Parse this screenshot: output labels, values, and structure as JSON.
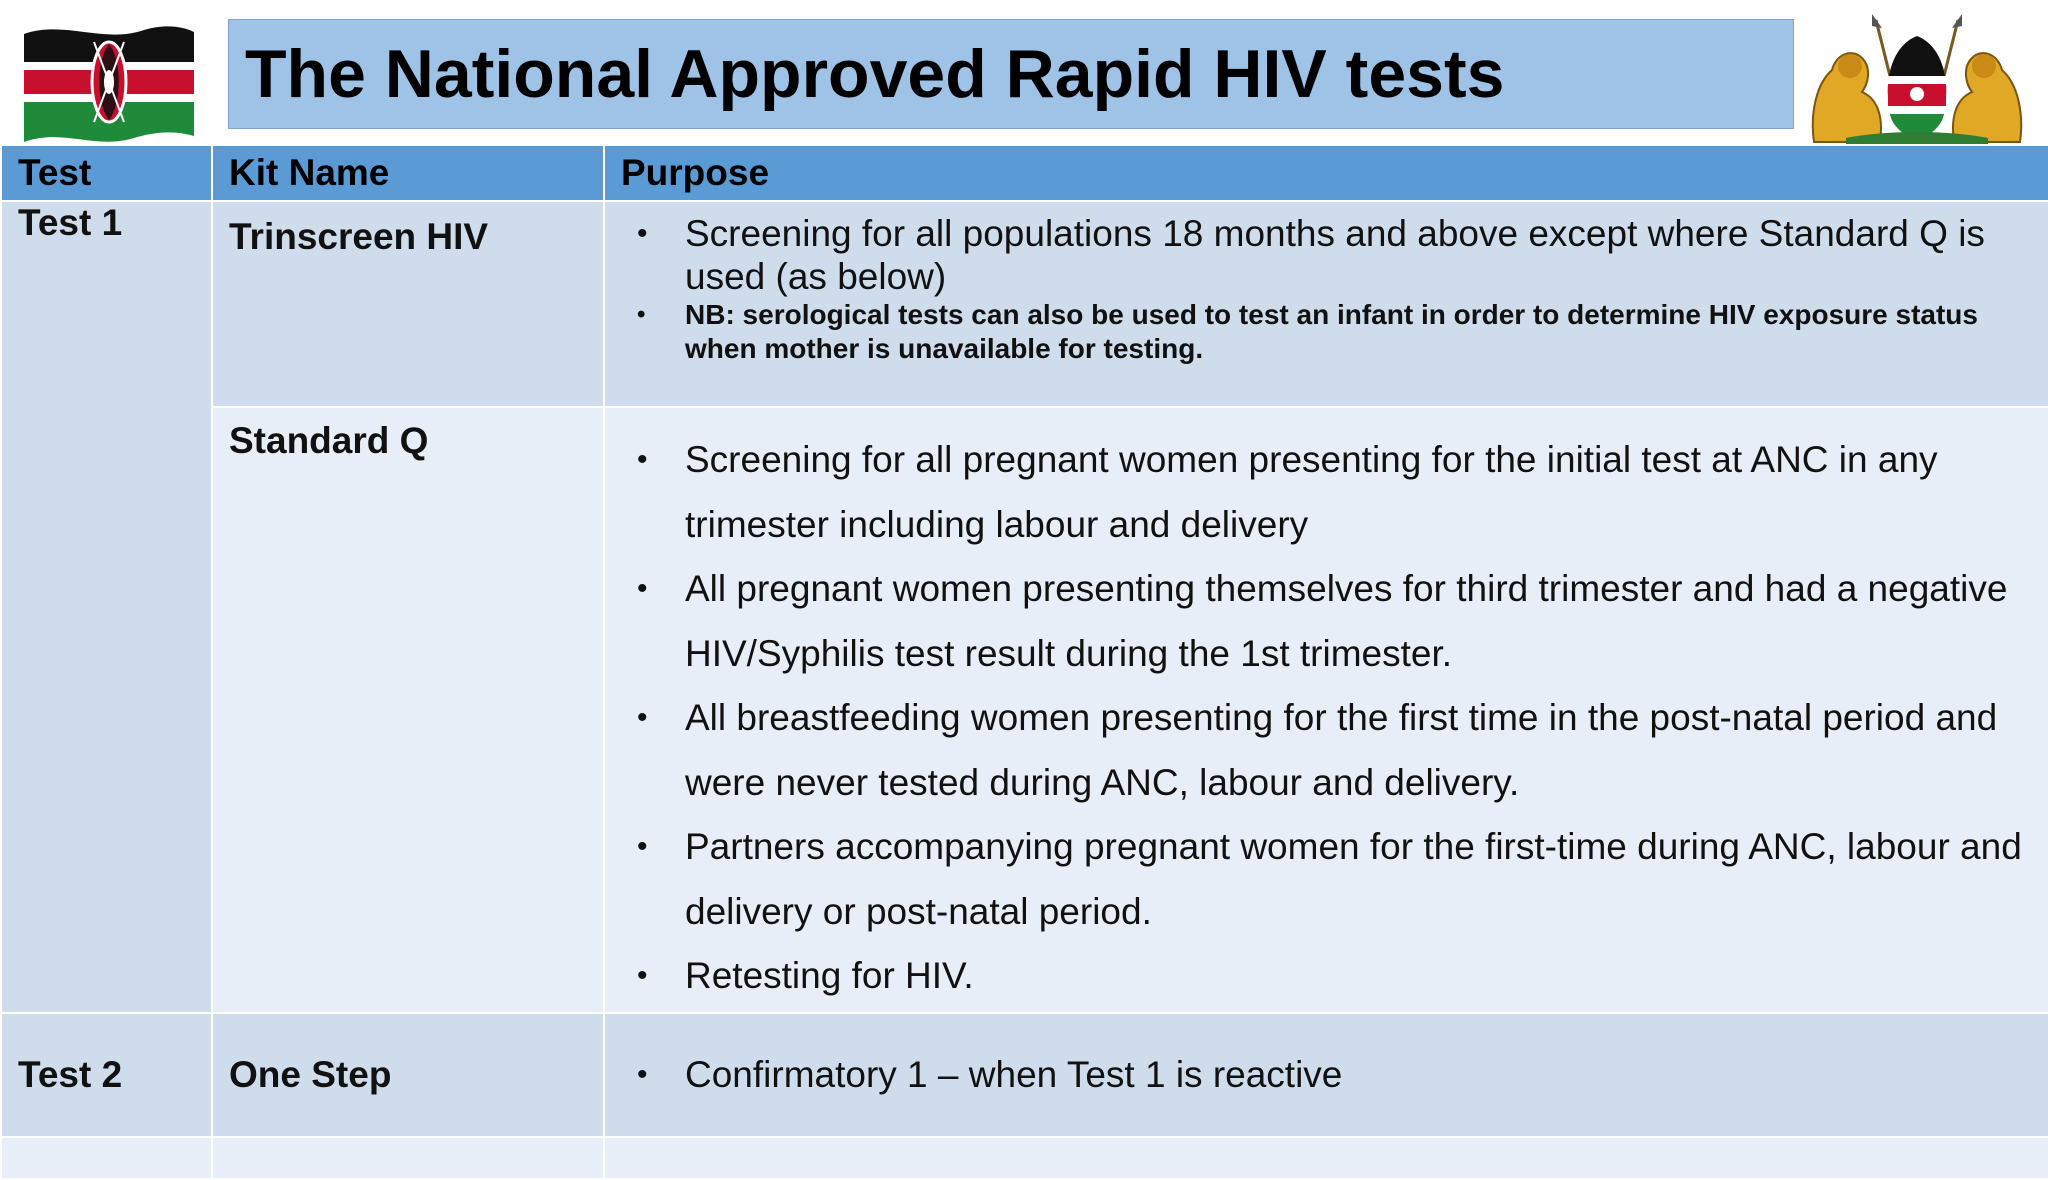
{
  "header": {
    "title": "The National Approved Rapid HIV tests"
  },
  "logos": {
    "left": "kenya-flag",
    "right": "kenya-coat-of-arms"
  },
  "colors": {
    "title_bg": "#9fc2e7",
    "header_row_bg": "#5b9bd5",
    "row_dark": "#cfdcec",
    "row_light": "#e8eef7"
  },
  "table": {
    "columns": [
      "Test",
      "Kit Name",
      "Purpose"
    ],
    "groups": [
      {
        "test": "Test 1",
        "kits": [
          {
            "name": "Trinscreen HIV",
            "purpose": [
              "Screening for all populations 18 months and above except where Standard Q is used (as below)"
            ],
            "note": "NB: serological tests can also be used to test an infant in order to determine HIV exposure status when mother is unavailable for testing."
          },
          {
            "name": "Standard Q",
            "purpose": [
              "Screening for all pregnant women presenting for the initial test at ANC in any trimester including labour and delivery",
              "All pregnant women presenting themselves for third trimester and had a negative HIV/Syphilis test result during the 1st trimester.",
              "All breastfeeding women presenting for the first time in the post-natal period and were never tested during ANC, labour and delivery.",
              "Partners accompanying pregnant women for the first-time during ANC, labour and delivery or post-natal period.",
              "Retesting for HIV."
            ]
          }
        ]
      },
      {
        "test": "Test 2",
        "kits": [
          {
            "name": "One Step",
            "purpose": [
              "Confirmatory 1 – when Test 1 is reactive"
            ]
          }
        ]
      }
    ]
  }
}
